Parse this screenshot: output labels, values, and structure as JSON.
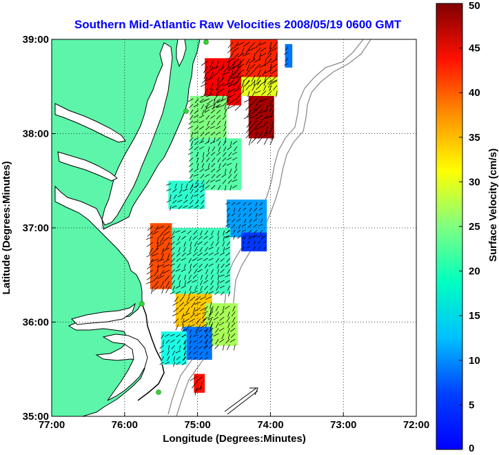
{
  "chart_data": {
    "type": "heatmap",
    "title": "Southern Mid-Atlantic Raw Velocities 2008/05/19 0600 GMT",
    "xlabel": "Longitude (Degrees:Minutes)",
    "ylabel": "Latitude (Degrees:Minutes)",
    "colorbar_label": "Surface Velocity (cm/s)",
    "x_ticks": [
      {
        "value": -77,
        "label": "77:00"
      },
      {
        "value": -76,
        "label": "76:00"
      },
      {
        "value": -75,
        "label": "75:00"
      },
      {
        "value": -74,
        "label": "74:00"
      },
      {
        "value": -73,
        "label": "73:00"
      },
      {
        "value": -72,
        "label": "72:00"
      }
    ],
    "y_ticks": [
      {
        "value": 35,
        "label": "35:00"
      },
      {
        "value": 36,
        "label": "36:00"
      },
      {
        "value": 37,
        "label": "37:00"
      },
      {
        "value": 38,
        "label": "38:00"
      },
      {
        "value": 39,
        "label": "39:00"
      }
    ],
    "xlim": [
      -77,
      -72
    ],
    "ylim": [
      35,
      39
    ],
    "colorbar_ticks": [
      {
        "value": 0,
        "label": "0"
      },
      {
        "value": 5,
        "label": "5"
      },
      {
        "value": 10,
        "label": "10"
      },
      {
        "value": 15,
        "label": "15"
      },
      {
        "value": 20,
        "label": "20"
      },
      {
        "value": 25,
        "label": "25"
      },
      {
        "value": 30,
        "label": "30"
      },
      {
        "value": 35,
        "label": "35"
      },
      {
        "value": 40,
        "label": "40"
      },
      {
        "value": 45,
        "label": "45"
      },
      {
        "value": 50,
        "label": "50"
      }
    ],
    "clim": [
      0,
      50
    ],
    "colormap": "jet",
    "grid": true,
    "grid_style": "dotted",
    "colors": {
      "land": "#5cf5a9",
      "coastline": "#000000",
      "bathymetry_contour": "#8c8c8c",
      "title": "#0000ff",
      "station_marker": "#33d633"
    },
    "velocity_regions": [
      {
        "lon": [
          -74.55,
          -73.9
        ],
        "lat": [
          38.55,
          39.0
        ],
        "speed": 42
      },
      {
        "lon": [
          -74.9,
          -74.4
        ],
        "lat": [
          38.3,
          38.8
        ],
        "speed": 44
      },
      {
        "lon": [
          -74.3,
          -73.95
        ],
        "lat": [
          37.95,
          38.4
        ],
        "speed": 48
      },
      {
        "lon": [
          -74.4,
          -73.9
        ],
        "lat": [
          38.4,
          38.6
        ],
        "speed": 30
      },
      {
        "lon": [
          -73.8,
          -73.7
        ],
        "lat": [
          38.7,
          38.95
        ],
        "speed": 12
      },
      {
        "lon": [
          -75.1,
          -74.6
        ],
        "lat": [
          37.95,
          38.4
        ],
        "speed": 25
      },
      {
        "lon": [
          -75.1,
          -74.4
        ],
        "lat": [
          37.4,
          37.95
        ],
        "speed": 23
      },
      {
        "lon": [
          -75.4,
          -74.9
        ],
        "lat": [
          37.2,
          37.5
        ],
        "speed": 21
      },
      {
        "lon": [
          -74.6,
          -74.05
        ],
        "lat": [
          36.9,
          37.3
        ],
        "speed": 14
      },
      {
        "lon": [
          -74.4,
          -74.05
        ],
        "lat": [
          36.75,
          36.95
        ],
        "speed": 9
      },
      {
        "lon": [
          -75.65,
          -75.35
        ],
        "lat": [
          36.35,
          37.05
        ],
        "speed": 40
      },
      {
        "lon": [
          -75.35,
          -74.55
        ],
        "lat": [
          36.3,
          37.0
        ],
        "speed": 22
      },
      {
        "lon": [
          -75.3,
          -74.8
        ],
        "lat": [
          35.95,
          36.3
        ],
        "speed": 34
      },
      {
        "lon": [
          -74.9,
          -74.45
        ],
        "lat": [
          35.75,
          36.2
        ],
        "speed": 27
      },
      {
        "lon": [
          -75.2,
          -74.8
        ],
        "lat": [
          35.6,
          35.95
        ],
        "speed": 12
      },
      {
        "lon": [
          -75.5,
          -75.15
        ],
        "lat": [
          35.55,
          35.9
        ],
        "speed": 20
      },
      {
        "lon": [
          -75.05,
          -74.9
        ],
        "lat": [
          35.25,
          35.45
        ],
        "speed": 43
      }
    ]
  }
}
